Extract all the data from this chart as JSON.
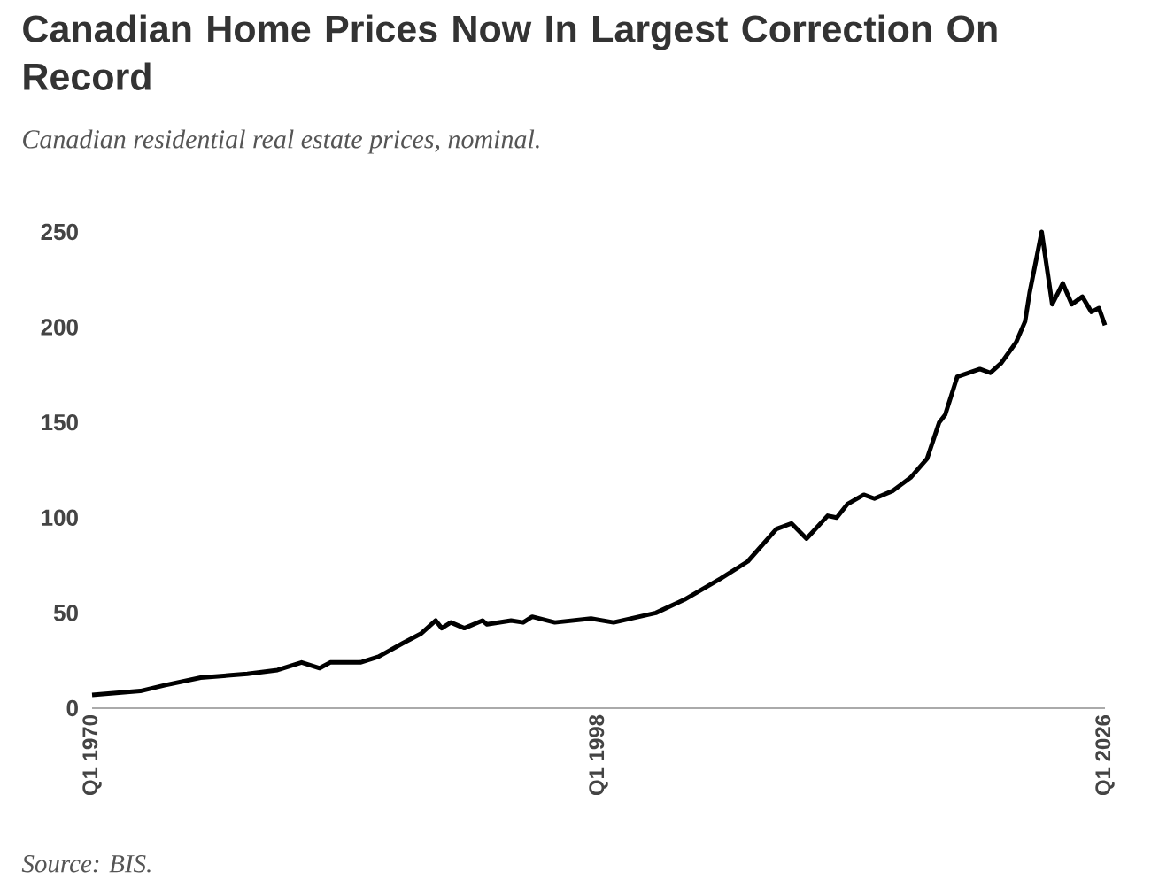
{
  "chart_data": {
    "type": "line",
    "title": "Canadian Home Prices Now In Largest Correction On Record",
    "subtitle": "Canadian residential real estate prices, nominal.",
    "annotations": [
      "Source: BIS."
    ],
    "x": [
      "1970-01",
      "1972-09",
      "1974-01",
      "1976-01",
      "1978-08",
      "1980-04",
      "1981-08",
      "1982-08",
      "1983-03",
      "1984-11",
      "1985-11",
      "1987-03",
      "1988-03",
      "1989-01",
      "1989-05",
      "1989-11",
      "1990-08",
      "1991-08",
      "1991-11",
      "1993-03",
      "1993-11",
      "1994-05",
      "1995-08",
      "1997-08",
      "1998-11",
      "2001-03",
      "2002-10",
      "2004-10",
      "2006-04",
      "2007-11",
      "2008-09",
      "2009-07",
      "2010-09",
      "2011-03",
      "2011-10",
      "2012-09",
      "2013-04",
      "2014-04",
      "2015-04",
      "2016-03",
      "2016-11",
      "2017-03",
      "2017-11",
      "2019-02",
      "2019-09",
      "2020-04",
      "2021-02",
      "2021-08",
      "2021-11",
      "2022-07",
      "2023-02",
      "2023-09",
      "2024-03",
      "2024-10",
      "2025-04",
      "2025-09",
      "2026-01"
    ],
    "values": [
      7,
      9,
      12,
      16,
      18,
      20,
      24,
      21,
      24,
      24,
      27,
      34,
      39,
      46,
      42,
      45,
      42,
      46,
      44,
      46,
      45,
      48,
      45,
      47,
      45,
      50,
      57,
      68,
      77,
      94,
      97,
      89,
      101,
      100,
      107,
      112,
      110,
      114,
      121,
      131,
      150,
      154,
      174,
      178,
      176,
      181,
      192,
      203,
      218,
      250,
      212,
      223,
      212,
      216,
      208,
      210,
      201
    ],
    "color": "#000000",
    "xlim": [
      "1970-01",
      "2026-01"
    ],
    "ylim": [
      0,
      250
    ],
    "xticks": [
      {
        "value": "1970-01",
        "label": "Q1 1970"
      },
      {
        "value": "1998-01",
        "label": "Q1 1998"
      },
      {
        "value": "2026-01",
        "label": "Q1 2026"
      }
    ],
    "yticks": [
      0,
      50,
      100,
      150,
      200,
      250
    ]
  }
}
